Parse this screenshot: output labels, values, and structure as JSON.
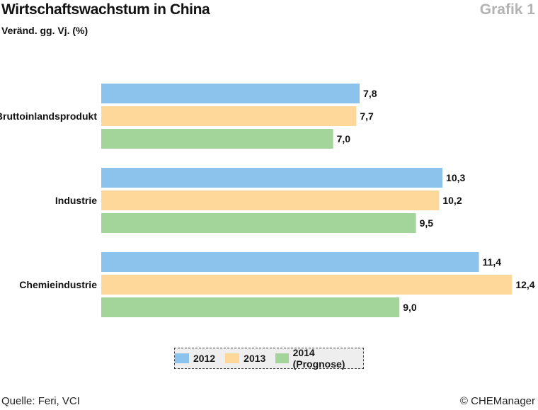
{
  "header": {
    "title": "Wirtschaftswachstum in China",
    "subtitle": "Veränd. gg. Vj. (%)",
    "grafik_label": "Grafik 1"
  },
  "footer": {
    "source": "Quelle: Feri, VCI",
    "copyright": "© CHEManager"
  },
  "colors": {
    "s2012": "#8cc3ec",
    "s2013": "#fdd89a",
    "s2014": "#a3d49a"
  },
  "chart_data": {
    "type": "bar",
    "orientation": "horizontal",
    "title": "Wirtschaftswachstum in China",
    "subtitle": "Veränd. gg. Vj. (%)",
    "categories": [
      "Bruttoinlandsprodukt",
      "Industrie",
      "Chemieindustrie"
    ],
    "series": [
      {
        "name": "2012",
        "values": [
          7.8,
          10.3,
          11.4
        ],
        "labels": [
          "7,8",
          "10,3",
          "11,4"
        ],
        "color": "#8cc3ec"
      },
      {
        "name": "2013",
        "values": [
          7.7,
          10.2,
          12.4
        ],
        "labels": [
          "7,7",
          "10,2",
          "12,4"
        ],
        "color": "#fdd89a"
      },
      {
        "name": "2014 (Prognose)",
        "values": [
          7.0,
          9.5,
          9.0
        ],
        "labels": [
          "7,0",
          "9,5",
          "9,0"
        ],
        "color": "#a3d49a"
      }
    ],
    "xlim": [
      0,
      12.4
    ],
    "grid": false,
    "legend_position": "bottom-center"
  }
}
